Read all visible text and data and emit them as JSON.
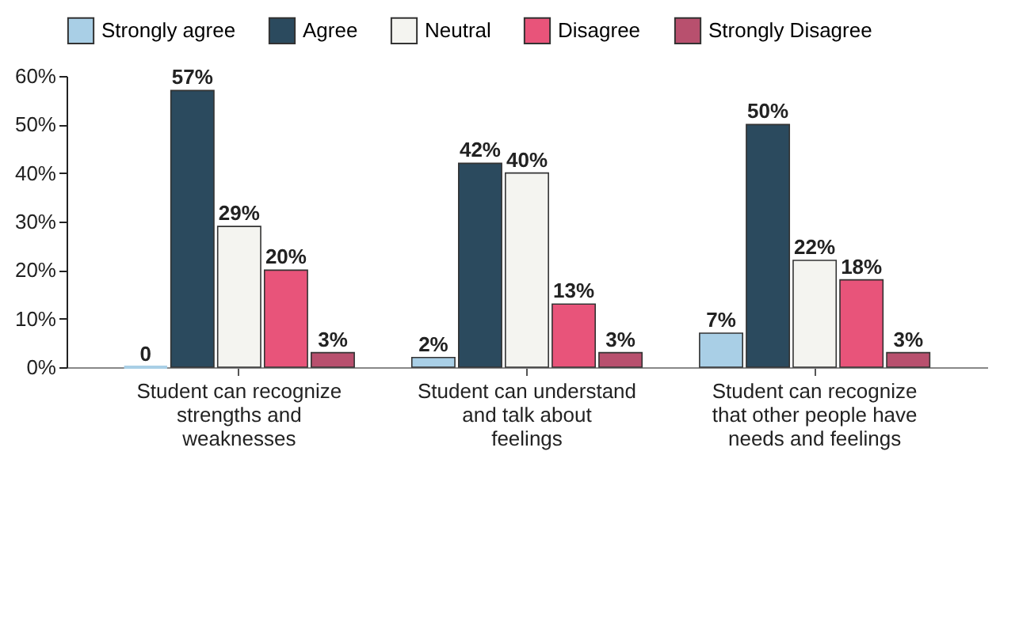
{
  "chart_data": {
    "type": "bar",
    "categories": [
      "Student can recognize strengths and weaknesses",
      "Student can understand and talk about feelings",
      "Student can recognize that other people have needs and feelings"
    ],
    "series": [
      {
        "name": "Strongly agree",
        "color": "#a9cfe6",
        "values": [
          0,
          2,
          7
        ],
        "value_labels": [
          "0",
          "2%",
          "7%"
        ]
      },
      {
        "name": "Agree",
        "color": "#2b4a5e",
        "values": [
          57,
          42,
          50
        ],
        "value_labels": [
          "57%",
          "42%",
          "50%"
        ]
      },
      {
        "name": "Neutral",
        "color": "#f4f4f0",
        "values": [
          29,
          40,
          22
        ],
        "value_labels": [
          "29%",
          "40%",
          "22%"
        ]
      },
      {
        "name": "Disagree",
        "color": "#e8547a",
        "values": [
          20,
          13,
          18
        ],
        "value_labels": [
          "20%",
          "13%",
          "18%"
        ]
      },
      {
        "name": "Strongly Disagree",
        "color": "#b8506e",
        "values": [
          3,
          3,
          3
        ],
        "value_labels": [
          "3%",
          "3%",
          "3%"
        ]
      }
    ],
    "ylim": [
      0,
      60
    ],
    "yticks": [
      {
        "value": 0,
        "label": "0%"
      },
      {
        "value": 10,
        "label": "10%"
      },
      {
        "value": 20,
        "label": "20%"
      },
      {
        "value": 30,
        "label": "30%"
      },
      {
        "value": 40,
        "label": "40%"
      },
      {
        "value": 50,
        "label": "50%"
      },
      {
        "value": 60,
        "label": "60%"
      }
    ],
    "legend": "top",
    "grid": false
  }
}
